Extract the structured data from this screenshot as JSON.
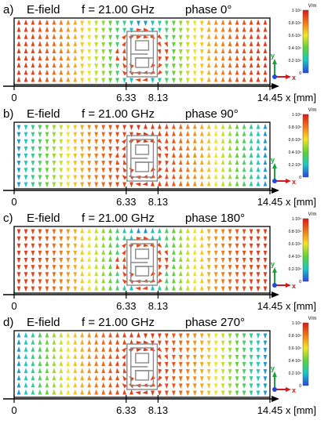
{
  "panels": [
    {
      "id": "a",
      "tag": "a)",
      "field": "E-field",
      "freq": "f = 21.00 GHz",
      "phase_label": "phase 0°",
      "phase_deg": 0
    },
    {
      "id": "b",
      "tag": "b)",
      "field": "E-field",
      "freq": "f = 21.00 GHz",
      "phase_label": "phase 90°",
      "phase_deg": 90
    },
    {
      "id": "c",
      "tag": "c)",
      "field": "E-field",
      "freq": "f = 21.00 GHz",
      "phase_label": "phase 180°",
      "phase_deg": 180
    },
    {
      "id": "d",
      "tag": "d)",
      "field": "E-field",
      "freq": "f = 21.00 GHz",
      "phase_label": "phase 270°",
      "phase_deg": 270
    }
  ],
  "axis": {
    "ticks": [
      "0",
      "6.33",
      "8.13",
      "14.45"
    ],
    "tick_values": [
      0,
      6.33,
      8.13,
      14.45
    ],
    "range": [
      0,
      14.45
    ],
    "xlabel": "x [mm]"
  },
  "colorbar": {
    "unit": "V/m",
    "labels": [
      "1·10⁴",
      "0.8·10⁴",
      "0.6·10⁴",
      "0.4·10⁴",
      "0.2·10⁴",
      "0"
    ],
    "colors": [
      "#d7191c",
      "#f07a1a",
      "#f2e52c",
      "#5fd13a",
      "#1fc7c4",
      "#2846d9"
    ]
  },
  "triad": {
    "y": "y",
    "x": "x",
    "y_color": "#1aa13a",
    "x_color": "#d11a1a"
  }
}
